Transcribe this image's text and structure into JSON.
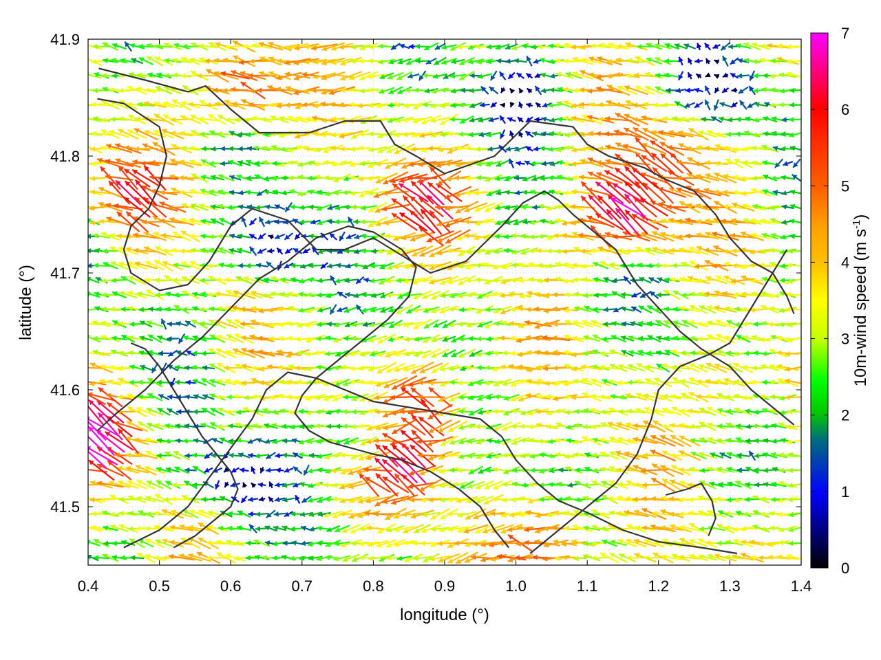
{
  "chart_data": {
    "type": "vector-field",
    "xlabel": "longitude (°)",
    "ylabel": "latitude (°)",
    "xlim": [
      0.4,
      1.4
    ],
    "ylim": [
      41.45,
      41.9
    ],
    "xticks": [
      "0.4",
      "0.5",
      "0.6",
      "0.7",
      "0.8",
      "0.9",
      "1.0",
      "1.1",
      "1.2",
      "1.3",
      "1.4"
    ],
    "yticks": [
      "41.5",
      "41.6",
      "41.7",
      "41.8",
      "41.9"
    ],
    "colorbar": {
      "label_main": "10m-wind speed (m s",
      "label_sup": "-1",
      "label_end": ")",
      "range": [
        0,
        7
      ],
      "ticks": [
        "0",
        "1",
        "2",
        "3",
        "4",
        "5",
        "6",
        "7"
      ],
      "palette": [
        "#000000",
        "#0000ff",
        "#00c800",
        "#00ff00",
        "#ffff00",
        "#ffa000",
        "#ff5000",
        "#ff0000",
        "#ff00ff"
      ]
    },
    "grid": "dotted",
    "coastline_color": "#333333",
    "wind_field": {
      "grid_step_deg": 0.0125,
      "dominant_direction": "westward (from east)",
      "speed_hotspots": [
        {
          "lon": 1.15,
          "lat": 41.75,
          "speed": 7
        },
        {
          "lon": 0.86,
          "lat": 41.76,
          "speed": 5
        },
        {
          "lon": 0.62,
          "lat": 41.86,
          "speed": 6
        },
        {
          "lon": 0.88,
          "lat": 41.59,
          "speed": 6
        },
        {
          "lon": 0.84,
          "lat": 41.54,
          "speed": 6.5
        },
        {
          "lon": 1.05,
          "lat": 41.47,
          "speed": 6
        },
        {
          "lon": 0.41,
          "lat": 41.56,
          "speed": 6
        },
        {
          "lon": 1.22,
          "lat": 41.8,
          "speed": 5
        },
        {
          "lon": 0.45,
          "lat": 41.77,
          "speed": 5
        },
        {
          "lon": 1.3,
          "lat": 41.6,
          "speed": 4.5
        }
      ],
      "calm_zones": [
        {
          "lon": 0.66,
          "lat": 41.72,
          "speed": 0.5
        },
        {
          "lon": 0.8,
          "lat": 41.56,
          "speed": 0.5
        },
        {
          "lon": 0.6,
          "lat": 41.52,
          "speed": 1
        },
        {
          "lon": 1.0,
          "lat": 41.86,
          "speed": 1
        },
        {
          "lon": 1.3,
          "lat": 41.86,
          "speed": 1.5
        }
      ]
    },
    "contour_lines": [
      [
        [
          0.415,
          41.875
        ],
        [
          0.48,
          41.865
        ],
        [
          0.54,
          41.855
        ],
        [
          0.565,
          41.86
        ],
        [
          0.6,
          41.84
        ],
        [
          0.64,
          41.82
        ],
        [
          0.71,
          41.82
        ],
        [
          0.76,
          41.83
        ],
        [
          0.81,
          41.83
        ],
        [
          0.83,
          41.81
        ],
        [
          0.86,
          41.8
        ],
        [
          0.9,
          41.785
        ],
        [
          0.97,
          41.8
        ],
        [
          1.02,
          41.83
        ],
        [
          1.08,
          41.825
        ],
        [
          1.1,
          41.81
        ],
        [
          1.13,
          41.8
        ],
        [
          1.18,
          41.79
        ],
        [
          1.21,
          41.78
        ],
        [
          1.25,
          41.77
        ],
        [
          1.28,
          41.75
        ],
        [
          1.3,
          41.73
        ],
        [
          1.33,
          41.71
        ],
        [
          1.36,
          41.7
        ],
        [
          1.38,
          41.68
        ],
        [
          1.39,
          41.665
        ]
      ],
      [
        [
          0.413,
          41.849
        ],
        [
          0.45,
          41.845
        ],
        [
          0.5,
          41.825
        ],
        [
          0.51,
          41.8
        ],
        [
          0.5,
          41.775
        ],
        [
          0.485,
          41.755
        ],
        [
          0.46,
          41.74
        ],
        [
          0.45,
          41.72
        ],
        [
          0.46,
          41.7
        ],
        [
          0.5,
          41.685
        ],
        [
          0.54,
          41.69
        ],
        [
          0.57,
          41.71
        ],
        [
          0.6,
          41.74
        ],
        [
          0.63,
          41.755
        ],
        [
          0.68,
          41.745
        ],
        [
          0.72,
          41.72
        ],
        [
          0.76,
          41.72
        ],
        [
          0.8,
          41.73
        ],
        [
          0.84,
          41.715
        ],
        [
          0.88,
          41.7
        ],
        [
          0.93,
          41.71
        ],
        [
          0.98,
          41.74
        ],
        [
          1.01,
          41.76
        ],
        [
          1.04,
          41.77
        ],
        [
          1.06,
          41.762
        ],
        [
          1.08,
          41.75
        ],
        [
          1.1,
          41.74
        ],
        [
          1.14,
          41.72
        ],
        [
          1.17,
          41.69
        ],
        [
          1.2,
          41.67
        ],
        [
          1.23,
          41.65
        ],
        [
          1.26,
          41.635
        ],
        [
          1.3,
          41.62
        ],
        [
          1.33,
          41.6
        ],
        [
          1.36,
          41.585
        ],
        [
          1.39,
          41.57
        ]
      ],
      [
        [
          0.413,
          41.565
        ],
        [
          0.44,
          41.58
        ],
        [
          0.48,
          41.6
        ],
        [
          0.52,
          41.625
        ],
        [
          0.56,
          41.645
        ],
        [
          0.6,
          41.67
        ],
        [
          0.64,
          41.695
        ],
        [
          0.68,
          41.71
        ],
        [
          0.72,
          41.73
        ],
        [
          0.765,
          41.74
        ],
        [
          0.8,
          41.735
        ],
        [
          0.84,
          41.72
        ],
        [
          0.86,
          41.705
        ],
        [
          0.85,
          41.68
        ],
        [
          0.82,
          41.66
        ],
        [
          0.8,
          41.65
        ],
        [
          0.78,
          41.64
        ],
        [
          0.75,
          41.625
        ],
        [
          0.72,
          41.61
        ],
        [
          0.7,
          41.595
        ],
        [
          0.69,
          41.58
        ],
        [
          0.71,
          41.565
        ],
        [
          0.74,
          41.555
        ],
        [
          0.77,
          41.55
        ],
        [
          0.8,
          41.545
        ],
        [
          0.84,
          41.54
        ],
        [
          0.88,
          41.53
        ],
        [
          0.92,
          41.515
        ],
        [
          0.95,
          41.5
        ],
        [
          0.97,
          41.48
        ],
        [
          0.99,
          41.465
        ]
      ],
      [
        [
          0.45,
          41.465
        ],
        [
          0.5,
          41.48
        ],
        [
          0.54,
          41.5
        ],
        [
          0.57,
          41.525
        ],
        [
          0.6,
          41.55
        ],
        [
          0.63,
          41.575
        ],
        [
          0.65,
          41.6
        ],
        [
          0.68,
          41.615
        ],
        [
          0.72,
          41.61
        ],
        [
          0.76,
          41.6
        ],
        [
          0.8,
          41.59
        ],
        [
          0.85,
          41.585
        ],
        [
          0.9,
          41.58
        ],
        [
          0.95,
          41.575
        ],
        [
          0.98,
          41.56
        ],
        [
          1.0,
          41.54
        ],
        [
          1.03,
          41.52
        ],
        [
          1.06,
          41.505
        ],
        [
          1.1,
          41.495
        ],
        [
          1.15,
          41.48
        ],
        [
          1.2,
          41.47
        ],
        [
          1.26,
          41.465
        ],
        [
          1.31,
          41.46
        ]
      ],
      [
        [
          1.02,
          41.46
        ],
        [
          1.06,
          41.48
        ],
        [
          1.1,
          41.5
        ],
        [
          1.14,
          41.52
        ],
        [
          1.17,
          41.545
        ],
        [
          1.19,
          41.575
        ],
        [
          1.2,
          41.6
        ],
        [
          1.23,
          41.62
        ],
        [
          1.27,
          41.63
        ],
        [
          1.3,
          41.64
        ],
        [
          1.32,
          41.66
        ],
        [
          1.34,
          41.68
        ],
        [
          1.36,
          41.7
        ],
        [
          1.38,
          41.72
        ]
      ],
      [
        [
          0.52,
          41.465
        ],
        [
          0.55,
          41.475
        ],
        [
          0.58,
          41.49
        ],
        [
          0.6,
          41.5
        ],
        [
          0.61,
          41.515
        ],
        [
          0.6,
          41.53
        ],
        [
          0.58,
          41.545
        ],
        [
          0.56,
          41.56
        ],
        [
          0.54,
          41.58
        ],
        [
          0.52,
          41.6
        ],
        [
          0.5,
          41.62
        ],
        [
          0.48,
          41.635
        ],
        [
          0.46,
          41.64
        ]
      ],
      [
        [
          1.21,
          41.51
        ],
        [
          1.24,
          41.515
        ],
        [
          1.26,
          41.52
        ],
        [
          1.275,
          41.505
        ],
        [
          1.28,
          41.49
        ],
        [
          1.27,
          41.475
        ]
      ]
    ]
  }
}
